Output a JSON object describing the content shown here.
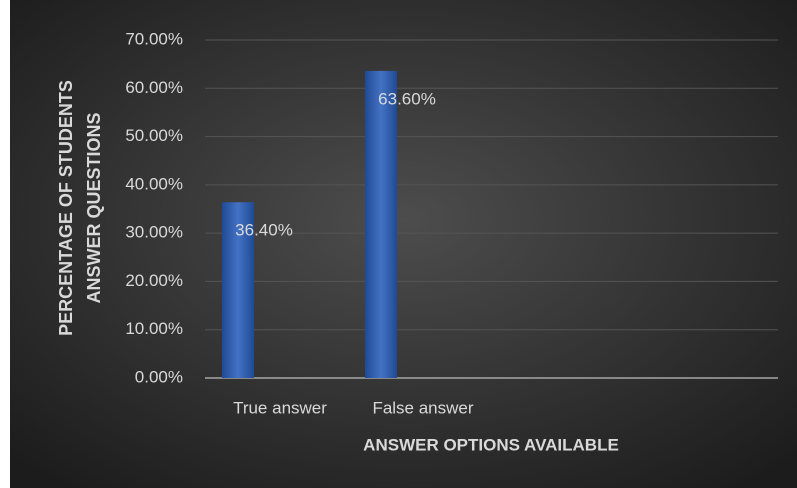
{
  "chart_data": {
    "type": "bar",
    "y_label": "PERCENTAGE OF STUDENTS ANSWER QUESTIONS",
    "x_label": "ANSWER OPTIONS AVAILABLE",
    "categories": [
      "True answer",
      "False answer",
      null,
      null
    ],
    "values": [
      36.4,
      63.6,
      null,
      null
    ],
    "value_labels": [
      "36.40%",
      "63.60%",
      null,
      null
    ],
    "color": "#4472c4",
    "ylim": [
      0,
      70
    ],
    "yticks": [
      {
        "value": 0,
        "label": "0.00%"
      },
      {
        "value": 10,
        "label": "10.00%"
      },
      {
        "value": 20,
        "label": "20.00%"
      },
      {
        "value": 30,
        "label": "30.00%"
      },
      {
        "value": 40,
        "label": "40.00%"
      },
      {
        "value": 50,
        "label": "50.00%"
      },
      {
        "value": 60,
        "label": "60.00%"
      },
      {
        "value": 70,
        "label": "70.00%"
      }
    ],
    "grid": true
  }
}
